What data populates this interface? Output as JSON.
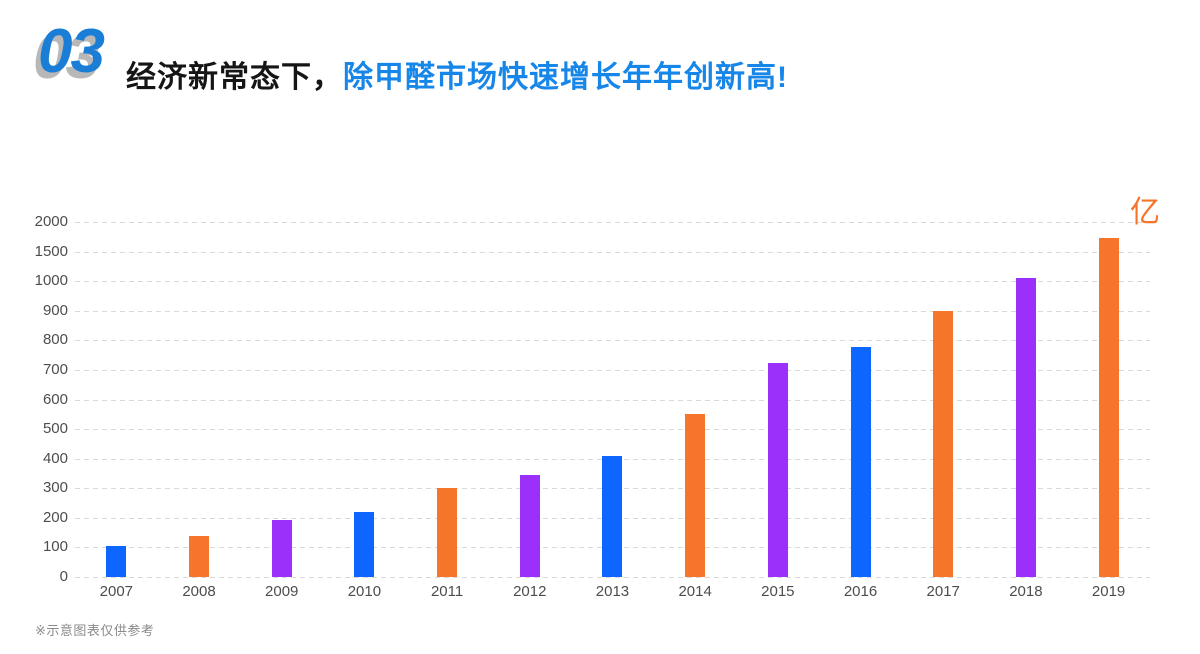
{
  "header": {
    "section_number": "03",
    "title_dark": "经济新常态下，",
    "title_highlight": "除甲醛市场快速增长年年创新高!"
  },
  "footnote": "※示意图表仅供参考",
  "colors": {
    "bar_blue": "#0d66ff",
    "bar_orange": "#f7752b",
    "bar_purple": "#9b30fa",
    "section_number_blue": "#1b7ed6",
    "section_number_shadow": "#b8b8b8",
    "title_dark": "#151515",
    "title_highlight_blue": "#1786e9",
    "unit_orange": "#f7752b",
    "axis_text": "#4d4d4d",
    "gridline": "#d9d9d9",
    "footnote_gray": "#8a8a8a"
  },
  "chart_data": {
    "type": "bar",
    "title": "除甲醛市场规模年年创新高（示意）",
    "unit_label": "亿",
    "categories": [
      "2007",
      "2008",
      "2009",
      "2010",
      "2011",
      "2012",
      "2013",
      "2014",
      "2015",
      "2016",
      "2017",
      "2018",
      "2019"
    ],
    "values": [
      105,
      138,
      193,
      220,
      300,
      345,
      410,
      552,
      725,
      777,
      900,
      1050,
      1730
    ],
    "bar_color_names": [
      "blue",
      "orange",
      "purple",
      "blue",
      "orange",
      "purple",
      "blue",
      "orange",
      "purple",
      "blue",
      "orange",
      "purple",
      "orange"
    ],
    "y_ticks": [
      0,
      100,
      200,
      300,
      400,
      500,
      600,
      700,
      800,
      900,
      1000,
      1500,
      2000
    ],
    "y_axis_note": "non-linear scale: all ticks equally spaced",
    "grid_style": "dashed",
    "xlabel": "",
    "ylabel": "亿",
    "legend": null
  }
}
